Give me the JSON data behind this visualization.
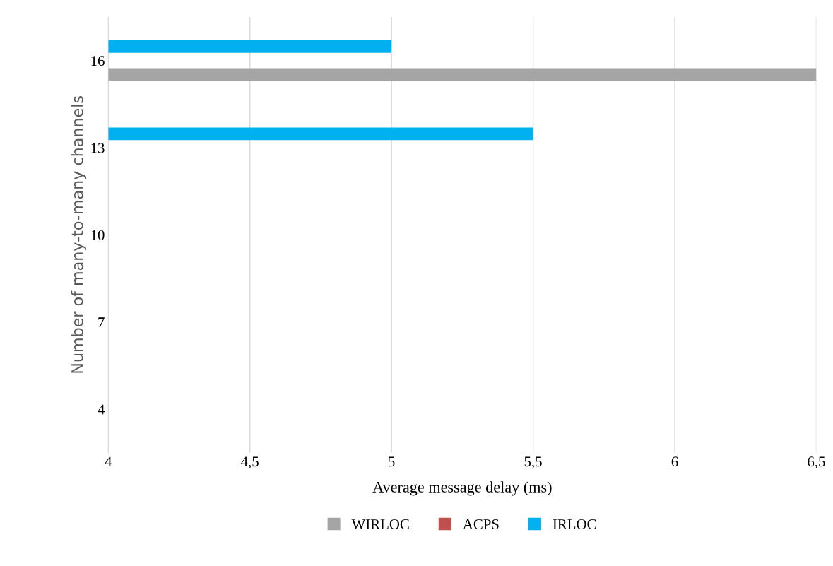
{
  "chart_data": {
    "type": "bar",
    "orientation": "horizontal",
    "xlabel": "Average message delay (ms)",
    "ylabel": "Number of many-to-many channels",
    "categories": [
      "16",
      "13",
      "10",
      "7",
      "4"
    ],
    "series": [
      {
        "name": "WIRLOC",
        "color": "#a5a5a5",
        "values": [
          6.5,
          null,
          null,
          null,
          null
        ]
      },
      {
        "name": "ACPS",
        "color": "#c0504d",
        "values": [
          null,
          null,
          null,
          null,
          null
        ]
      },
      {
        "name": "IRLOC",
        "color": "#00b0f0",
        "values": [
          5.0,
          5.5,
          null,
          null,
          null
        ]
      }
    ],
    "xlim": [
      4,
      6.5
    ],
    "xticks": [
      4,
      {
        "value": 4.5,
        "label": "4,5"
      },
      5,
      {
        "value": 5.5,
        "label": "5,5"
      },
      6,
      {
        "value": 6.5,
        "label": "6,5"
      }
    ],
    "grid": "x",
    "legend": "bottom"
  }
}
